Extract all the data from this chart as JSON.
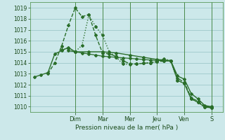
{
  "xlabel": "Pression niveau de la mer( hPa )",
  "bg_color": "#cce8ea",
  "grid_color": "#9ec8ca",
  "line_color": "#2a6e2a",
  "vline_color": "#4a8a4a",
  "ylim": [
    1009.5,
    1019.5
  ],
  "yticks": [
    1010,
    1011,
    1012,
    1013,
    1014,
    1015,
    1016,
    1017,
    1018,
    1019
  ],
  "day_labels": [
    "Dim",
    "Mar",
    "Mer",
    "Jeu",
    "Ven",
    "S"
  ],
  "day_positions": [
    3,
    5,
    7,
    9,
    11,
    13
  ],
  "xlim": [
    -0.3,
    13.8
  ],
  "lines": [
    {
      "x": [
        0,
        0.5,
        1.0,
        1.5,
        2.0,
        2.5,
        3.0,
        4.0,
        5.0,
        6.0,
        7.0,
        8.0,
        9.0,
        10.0,
        10.5,
        11.0,
        11.5,
        12.0,
        12.5,
        13.0
      ],
      "y": [
        1012.7,
        1012.9,
        1013.1,
        1014.8,
        1015.1,
        1015.4,
        1015.0,
        1015.0,
        1015.0,
        1014.9,
        1014.7,
        1014.5,
        1014.3,
        1014.2,
        1012.8,
        1012.5,
        1011.2,
        1010.7,
        1010.1,
        1010.0
      ],
      "style": "-",
      "marker": "D",
      "ms": 2.0,
      "lw": 1.0
    },
    {
      "x": [
        1.0,
        1.5,
        2.0,
        2.5,
        3.0,
        3.5,
        4.0,
        4.5,
        5.0,
        5.5,
        6.0,
        6.5,
        7.0,
        7.5,
        8.0,
        8.5,
        9.0,
        9.5,
        10.0,
        10.5,
        11.0,
        11.5,
        12.0,
        12.5,
        13.0
      ],
      "y": [
        1013.0,
        1014.0,
        1015.5,
        1017.4,
        1019.0,
        1018.2,
        1018.4,
        1016.5,
        1014.9,
        1014.8,
        1014.6,
        1014.2,
        1013.9,
        1013.9,
        1013.95,
        1014.0,
        1014.1,
        1014.15,
        1014.2,
        1012.6,
        1012.2,
        1010.8,
        1010.5,
        1010.0,
        1009.95
      ],
      "style": "--",
      "marker": "D",
      "ms": 2.0,
      "lw": 1.0
    },
    {
      "x": [
        2.0,
        2.5,
        3.0,
        3.5,
        4.0,
        4.5,
        5.0,
        5.5,
        6.0,
        6.5,
        7.0,
        7.5,
        8.0,
        8.5,
        9.0,
        9.5,
        10.0,
        10.5,
        11.0,
        11.5,
        12.0,
        12.5,
        13.0
      ],
      "y": [
        1015.2,
        1015.3,
        1015.0,
        1015.6,
        1018.35,
        1017.3,
        1016.5,
        1015.0,
        1014.5,
        1013.9,
        1013.85,
        1013.9,
        1013.95,
        1014.0,
        1014.1,
        1014.35,
        1014.2,
        1012.4,
        1012.1,
        1010.7,
        1010.4,
        1009.95,
        1009.9
      ],
      "style": ":",
      "marker": "D",
      "ms": 2.0,
      "lw": 1.0
    },
    {
      "x": [
        2.5,
        3.0,
        3.5,
        4.0,
        4.5,
        5.0,
        5.5,
        6.0,
        6.5,
        7.0,
        7.5,
        8.0,
        8.5,
        9.0,
        9.5,
        10.0,
        10.5,
        11.0,
        11.5,
        12.0,
        12.5,
        13.0
      ],
      "y": [
        1015.1,
        1015.0,
        1014.9,
        1014.8,
        1014.7,
        1014.6,
        1014.55,
        1014.5,
        1014.45,
        1014.4,
        1014.35,
        1014.3,
        1014.25,
        1014.2,
        1014.2,
        1014.15,
        1012.4,
        1012.1,
        1010.7,
        1010.4,
        1009.95,
        1009.9
      ],
      "style": "-",
      "marker": "D",
      "ms": 2.0,
      "lw": 0.9
    }
  ]
}
